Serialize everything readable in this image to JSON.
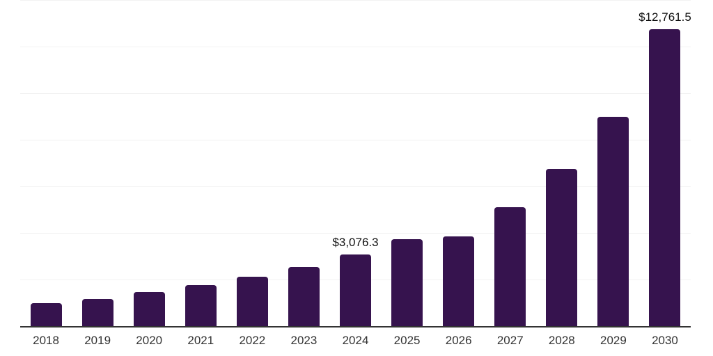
{
  "chart_data": {
    "type": "bar",
    "title": "",
    "xlabel": "",
    "ylabel": "",
    "categories": [
      "2018",
      "2019",
      "2020",
      "2021",
      "2022",
      "2023",
      "2024",
      "2025",
      "2026",
      "2027",
      "2028",
      "2029",
      "2030"
    ],
    "values": [
      985,
      1180,
      1460,
      1760,
      2115,
      2530,
      3076.3,
      3745,
      3860,
      5095,
      6755,
      9000,
      12761.5
    ],
    "value_labels": [
      "",
      "",
      "",
      "",
      "",
      "",
      "$3,076.3",
      "",
      "",
      "",
      "",
      "",
      "$12,761.5"
    ],
    "ylim": [
      0,
      14000
    ],
    "gridline_interval": 2000,
    "grid": "horizontal-only",
    "legend_position": "none",
    "y_axis_tick_labels_visible": false,
    "colors": {
      "bar": "#36134e",
      "axis_line": "#333333",
      "gridline": "#f2f2f2",
      "tick_label": "#333333",
      "value_label": "#111111",
      "background": "#ffffff"
    }
  }
}
